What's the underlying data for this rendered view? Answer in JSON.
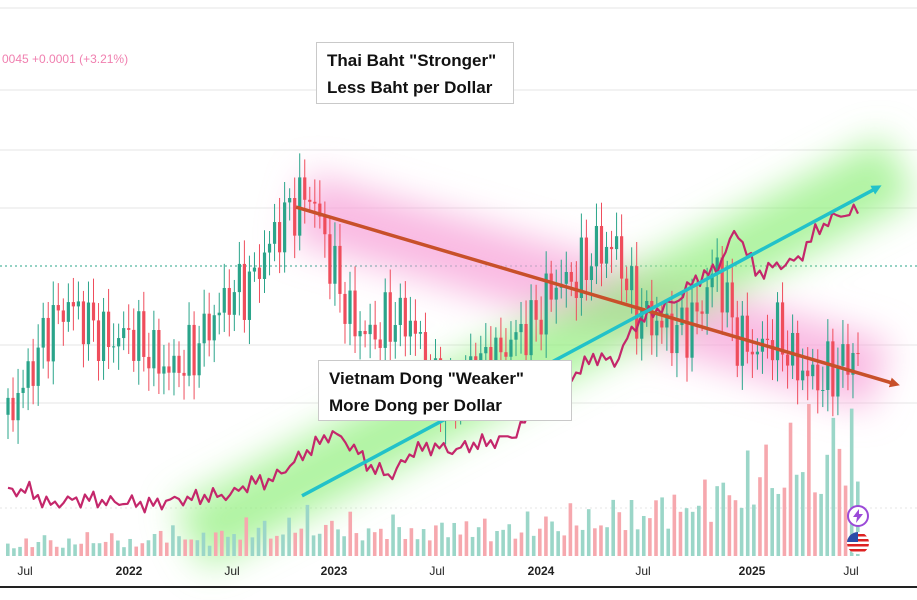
{
  "quote": {
    "text": "0045 +0.0001 (+3.21%)",
    "color": "#f07faf"
  },
  "annotations": {
    "baht": {
      "line1": "Thai Baht \"Stronger\"",
      "line2": "Less Baht per Dollar"
    },
    "dong": {
      "line1": "Vietnam Dong \"Weaker\"",
      "line2": "More Dong per Dollar"
    }
  },
  "icons": {
    "bolt": "lightning-icon",
    "flag": "us-flag-icon"
  },
  "colors": {
    "up": "#2aa48a",
    "down": "#ef4d5c",
    "vnd_line": "#c4276b",
    "thb_trend": "#c8502a",
    "vnd_trend": "#22c2c9",
    "thb_glow": "#f7a3d8",
    "vnd_glow": "#8ff07a"
  },
  "chart_data": {
    "type": "line",
    "x_ticks": [
      "Jul",
      "2022",
      "Jul",
      "2023",
      "Jul",
      "2024",
      "Jul",
      "2025",
      "Jul"
    ],
    "series": [
      {
        "style": "candlestick",
        "values": [
          0.0284,
          0.0292,
          0.0302,
          0.0307,
          0.0303,
          0.0299,
          0.0301,
          0.0297,
          0.0293,
          0.0296,
          0.0303,
          0.0309,
          0.0311,
          0.032,
          0.0327,
          0.033,
          0.0315,
          0.0303,
          0.03,
          0.0304,
          0.0303,
          0.029,
          0.0288,
          0.0294,
          0.0295,
          0.03,
          0.0303,
          0.0311,
          0.0312,
          0.0318,
          0.0319,
          0.0306,
          0.0303,
          0.0301,
          0.0304,
          0.0315,
          0.03,
          0.0297,
          0.0301,
          0.0294,
          0.0291,
          0.0294,
          0.0297
        ]
      },
      {
        "style": "line",
        "values": [
          23000,
          23020,
          22850,
          22900,
          22920,
          22880,
          22880,
          22850,
          22900,
          22920,
          22950,
          22960,
          23100,
          23120,
          23300,
          23480,
          23650,
          23500,
          23250,
          23180,
          23450,
          23500,
          23450,
          23520,
          23550,
          23620,
          23900,
          24050,
          24300,
          24500,
          24420,
          24850,
          25000,
          25100,
          25350,
          25450,
          25900,
          25400,
          25500,
          25550,
          25900,
          26050,
          26100
        ]
      }
    ],
    "trends": [
      {
        "from": [
          "Oct 2022",
          0.0327
        ],
        "to": [
          "Jul 2025",
          0.0292
        ]
      },
      {
        "from": [
          "Oct 2022",
          23150
        ],
        "to": [
          "Jul 2025",
          26250
        ]
      }
    ],
    "volume": [
      2,
      2,
      3,
      2,
      3,
      3,
      2,
      3,
      4,
      3,
      3,
      4,
      5,
      4,
      5,
      6,
      5,
      5,
      4,
      5,
      4,
      4,
      5,
      5,
      4,
      5,
      5,
      6,
      6,
      6,
      7,
      7,
      8,
      8,
      9,
      10,
      12,
      13,
      15,
      17,
      18,
      19,
      16
    ]
  }
}
